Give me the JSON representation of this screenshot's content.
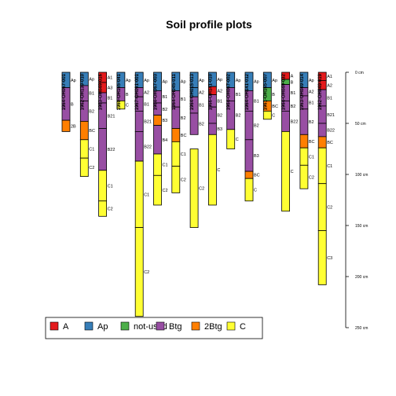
{
  "chart_data": {
    "type": "soil-profile",
    "title": "Soil profile plots",
    "depth_unit": "cm",
    "depth_ticks": [
      0,
      50,
      100,
      150,
      200,
      250
    ],
    "depth_tick_labels": [
      "0 cm",
      "50 cm",
      "100 cm",
      "150 cm",
      "200 cm",
      "250 cm"
    ],
    "ylim": [
      0,
      250
    ],
    "colors": {
      "A": "#e41a1c",
      "Ap": "#377eb8",
      "not-used": "#4daf4a",
      "Btg": "#984ea3",
      "2Btg": "#ff7f00",
      "C": "#ffff33"
    },
    "legend": {
      "position": "bottom-left",
      "entries": [
        {
          "key": "A",
          "label": "A"
        },
        {
          "key": "Ap",
          "label": "Ap"
        },
        {
          "key": "not-used",
          "label": "not-used"
        },
        {
          "key": "Btg",
          "label": "Btg"
        },
        {
          "key": "2Btg",
          "label": "2Btg"
        },
        {
          "key": "C",
          "label": "C"
        }
      ]
    },
    "profiles": [
      {
        "id": "1964-OH067-001",
        "horizons": [
          {
            "name": "Ap",
            "top": 0,
            "bottom": 15,
            "group": "Ap"
          },
          {
            "name": "B",
            "top": 15,
            "bottom": 47,
            "group": "Btg"
          },
          {
            "name": "2B",
            "top": 47,
            "bottom": 58,
            "group": "2Btg"
          }
        ]
      },
      {
        "id": "1962-OH139-010",
        "horizons": [
          {
            "name": "Ap",
            "top": 0,
            "bottom": 13,
            "group": "Ap"
          },
          {
            "name": "B1",
            "top": 13,
            "bottom": 28,
            "group": "Btg"
          },
          {
            "name": "B2",
            "top": 28,
            "bottom": 48,
            "group": "Btg"
          },
          {
            "name": "BC",
            "top": 48,
            "bottom": 66,
            "group": "2Btg"
          },
          {
            "name": "C1",
            "top": 66,
            "bottom": 84,
            "group": "C"
          },
          {
            "name": "C2",
            "top": 84,
            "bottom": 102,
            "group": "C"
          }
        ]
      },
      {
        "id": "1963-OH049-016",
        "horizons": [
          {
            "name": "A1",
            "top": 0,
            "bottom": 10,
            "group": "A"
          },
          {
            "name": "A3",
            "top": 10,
            "bottom": 20,
            "group": "A"
          },
          {
            "name": "B1",
            "top": 20,
            "bottom": 30,
            "group": "Btg"
          },
          {
            "name": "B21",
            "top": 30,
            "bottom": 55,
            "group": "Btg"
          },
          {
            "name": "B22",
            "top": 55,
            "bottom": 96,
            "group": "Btg"
          },
          {
            "name": "C1",
            "top": 96,
            "bottom": 126,
            "group": "C"
          },
          {
            "name": "C2",
            "top": 126,
            "bottom": 141,
            "group": "C"
          }
        ]
      },
      {
        "id": "1960-OH165-041",
        "horizons": [
          {
            "name": "Ap",
            "top": 0,
            "bottom": 15,
            "group": "Ap"
          },
          {
            "name": "B",
            "top": 15,
            "bottom": 28,
            "group": "Btg"
          },
          {
            "name": "C",
            "top": 28,
            "bottom": 36,
            "group": "C"
          }
        ]
      },
      {
        "id": "1967-OH091-001",
        "horizons": [
          {
            "name": "Ap",
            "top": 0,
            "bottom": 15,
            "group": "Ap"
          },
          {
            "name": "A2",
            "top": 15,
            "bottom": 24,
            "group": "Btg"
          },
          {
            "name": "B1",
            "top": 24,
            "bottom": 38,
            "group": "Btg"
          },
          {
            "name": "B21",
            "top": 38,
            "bottom": 58,
            "group": "Btg"
          },
          {
            "name": "B22",
            "top": 58,
            "bottom": 87,
            "group": "Btg"
          },
          {
            "name": "C1",
            "top": 87,
            "bottom": 152,
            "group": "C"
          },
          {
            "name": "C2",
            "top": 152,
            "bottom": 239,
            "group": "C"
          }
        ]
      },
      {
        "id": "1964-OH067-003",
        "horizons": [
          {
            "name": "Ap",
            "top": 0,
            "bottom": 18,
            "group": "Ap"
          },
          {
            "name": "B1",
            "top": 18,
            "bottom": 30,
            "group": "Btg"
          },
          {
            "name": "B2",
            "top": 30,
            "bottom": 42,
            "group": "Btg"
          },
          {
            "name": "B3",
            "top": 42,
            "bottom": 52,
            "group": "2Btg"
          },
          {
            "name": "B4",
            "top": 52,
            "bottom": 80,
            "group": "Btg"
          },
          {
            "name": "C1",
            "top": 80,
            "bottom": 101,
            "group": "C"
          },
          {
            "name": "C2",
            "top": 101,
            "bottom": 130,
            "group": "C"
          }
        ]
      },
      {
        "id": "1964-OH045-011",
        "horizons": [
          {
            "name": "Ap",
            "top": 0,
            "bottom": 18,
            "group": "Ap"
          },
          {
            "name": "B1",
            "top": 18,
            "bottom": 34,
            "group": "Btg"
          },
          {
            "name": "B2",
            "top": 34,
            "bottom": 55,
            "group": "Btg"
          },
          {
            "name": "BC",
            "top": 55,
            "bottom": 68,
            "group": "2Btg"
          },
          {
            "name": "C1",
            "top": 68,
            "bottom": 92,
            "group": "C"
          },
          {
            "name": "C2",
            "top": 92,
            "bottom": 118,
            "group": "C"
          }
        ]
      },
      {
        "id": "1964-OH015-013",
        "horizons": [
          {
            "name": "Ap",
            "top": 0,
            "bottom": 15,
            "group": "Ap"
          },
          {
            "name": "A2",
            "top": 15,
            "bottom": 24,
            "group": "Ap"
          },
          {
            "name": "B1",
            "top": 24,
            "bottom": 40,
            "group": "Btg"
          },
          {
            "name": "B2",
            "top": 40,
            "bottom": 61,
            "group": "Btg"
          },
          {
            "name": "C2",
            "top": 75,
            "bottom": 152,
            "group": "C"
          }
        ]
      },
      {
        "id": "1966-OH141-010",
        "horizons": [
          {
            "name": "Ap",
            "top": 0,
            "bottom": 14,
            "group": "Ap"
          },
          {
            "name": "A2",
            "top": 14,
            "bottom": 22,
            "group": "A"
          },
          {
            "name": "B1",
            "top": 22,
            "bottom": 34,
            "group": "Btg"
          },
          {
            "name": "B2",
            "top": 34,
            "bottom": 50,
            "group": "Btg"
          },
          {
            "name": "B3",
            "top": 50,
            "bottom": 61,
            "group": "Btg"
          },
          {
            "name": "C",
            "top": 61,
            "bottom": 130,
            "group": "C"
          }
        ]
      },
      {
        "id": "1964-OH067-002",
        "horizons": [
          {
            "name": "Ap",
            "top": 0,
            "bottom": 15,
            "group": "Ap"
          },
          {
            "name": "B1",
            "top": 15,
            "bottom": 28,
            "group": "Btg"
          },
          {
            "name": "B2",
            "top": 28,
            "bottom": 56,
            "group": "Btg"
          },
          {
            "name": "C",
            "top": 56,
            "bottom": 75,
            "group": "C"
          }
        ]
      },
      {
        "id": "1964-OH141-012",
        "horizons": [
          {
            "name": "Ap",
            "top": 0,
            "bottom": 18,
            "group": "Ap"
          },
          {
            "name": "B1",
            "top": 18,
            "bottom": 38,
            "group": "Btg"
          },
          {
            "name": "B2",
            "top": 38,
            "bottom": 66,
            "group": "Btg"
          },
          {
            "name": "B3",
            "top": 66,
            "bottom": 97,
            "group": "Btg"
          },
          {
            "name": "BC",
            "top": 97,
            "bottom": 104,
            "group": "2Btg"
          },
          {
            "name": "C",
            "top": 104,
            "bottom": 126,
            "group": "C"
          }
        ]
      },
      {
        "id": "1961-OH165-007",
        "horizons": [
          {
            "name": "Ap",
            "top": 0,
            "bottom": 15,
            "group": "Ap"
          },
          {
            "name": "B",
            "top": 15,
            "bottom": 28,
            "group": "not-used"
          },
          {
            "name": "BC",
            "top": 28,
            "bottom": 38,
            "group": "2Btg"
          },
          {
            "name": "C",
            "top": 38,
            "bottom": 46,
            "group": "C"
          }
        ]
      },
      {
        "id": "1964-OH049-032",
        "horizons": [
          {
            "name": "A",
            "top": 0,
            "bottom": 7,
            "group": "A"
          },
          {
            "name": "B",
            "top": 7,
            "bottom": 12,
            "group": "not-used"
          },
          {
            "name": "B1",
            "top": 12,
            "bottom": 28,
            "group": "Btg"
          },
          {
            "name": "B2",
            "top": 28,
            "bottom": 38,
            "group": "Btg"
          },
          {
            "name": "B22",
            "top": 38,
            "bottom": 58,
            "group": "Btg"
          },
          {
            "name": "C",
            "top": 58,
            "bottom": 136,
            "group": "C"
          }
        ]
      },
      {
        "id": "1963-OH049-014",
        "horizons": [
          {
            "name": "Ap",
            "top": 0,
            "bottom": 15,
            "group": "Ap"
          },
          {
            "name": "A2",
            "top": 15,
            "bottom": 23,
            "group": "Btg"
          },
          {
            "name": "B1",
            "top": 23,
            "bottom": 36,
            "group": "Btg"
          },
          {
            "name": "B2",
            "top": 36,
            "bottom": 61,
            "group": "Btg"
          },
          {
            "name": "BC",
            "top": 61,
            "bottom": 74,
            "group": "2Btg"
          },
          {
            "name": "C1",
            "top": 74,
            "bottom": 91,
            "group": "C"
          },
          {
            "name": "C2",
            "top": 91,
            "bottom": 114,
            "group": "C"
          }
        ]
      },
      {
        "id": "1962-OH049-019",
        "horizons": [
          {
            "name": "A1",
            "top": 0,
            "bottom": 8,
            "group": "A"
          },
          {
            "name": "A2",
            "top": 8,
            "bottom": 17,
            "group": "A"
          },
          {
            "name": "B1",
            "top": 17,
            "bottom": 33,
            "group": "Btg"
          },
          {
            "name": "B21",
            "top": 33,
            "bottom": 50,
            "group": "Btg"
          },
          {
            "name": "B22",
            "top": 50,
            "bottom": 63,
            "group": "Btg"
          },
          {
            "name": "BC",
            "top": 63,
            "bottom": 74,
            "group": "2Btg"
          },
          {
            "name": "C1",
            "top": 74,
            "bottom": 109,
            "group": "C"
          },
          {
            "name": "C2",
            "top": 109,
            "bottom": 155,
            "group": "C"
          },
          {
            "name": "C3",
            "top": 155,
            "bottom": 208,
            "group": "C"
          }
        ]
      }
    ]
  }
}
